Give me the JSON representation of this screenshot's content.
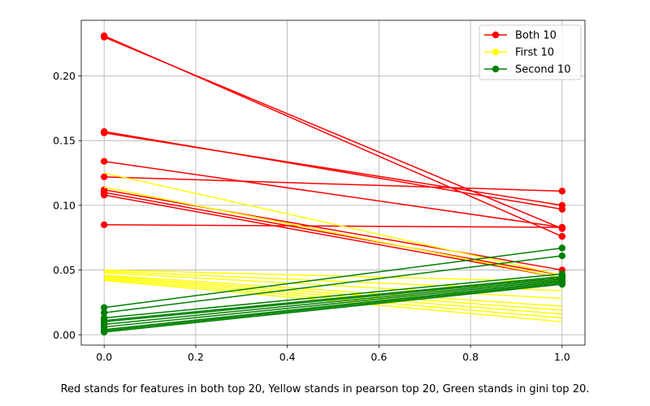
{
  "chart_data": {
    "type": "line",
    "xlim": [
      -0.05,
      1.05
    ],
    "ylim": [
      -0.008,
      0.243
    ],
    "x_ticks": [
      0.0,
      0.2,
      0.4,
      0.6,
      0.8,
      1.0
    ],
    "x_tick_labels": [
      "0.0",
      "0.2",
      "0.4",
      "0.6",
      "0.8",
      "1.0"
    ],
    "y_ticks": [
      0.0,
      0.05,
      0.1,
      0.15,
      0.2
    ],
    "y_tick_labels": [
      "0.00",
      "0.05",
      "0.10",
      "0.15",
      "0.20"
    ],
    "grid": true,
    "legend_position": "top-right",
    "legend": [
      {
        "label": "Both 10",
        "color": "#ff0000"
      },
      {
        "label": "First 10",
        "color": "#ffff00"
      },
      {
        "label": "Second 10",
        "color": "#008000"
      }
    ],
    "groups": [
      {
        "name": "Both 10",
        "color": "#ff0000",
        "markers": true,
        "lines": [
          [
            0.231,
            0.076
          ],
          [
            0.23,
            0.082
          ],
          [
            0.157,
            0.097
          ],
          [
            0.156,
            0.1
          ],
          [
            0.134,
            0.083
          ],
          [
            0.122,
            0.111
          ],
          [
            0.112,
            0.05
          ],
          [
            0.11,
            0.046
          ],
          [
            0.108,
            0.044
          ],
          [
            0.085,
            0.083
          ]
        ]
      },
      {
        "name": "First 10",
        "color": "#ffff00",
        "markers": false,
        "lines": [
          [
            0.125,
            0.046
          ],
          [
            0.114,
            0.044
          ],
          [
            0.05,
            0.041
          ],
          [
            0.049,
            0.034
          ],
          [
            0.048,
            0.028
          ],
          [
            0.046,
            0.022
          ],
          [
            0.045,
            0.019
          ],
          [
            0.044,
            0.016
          ],
          [
            0.043,
            0.013
          ],
          [
            0.042,
            0.01
          ]
        ]
      },
      {
        "name": "Second 10",
        "color": "#008000",
        "markers": true,
        "lines": [
          [
            0.021,
            0.067
          ],
          [
            0.017,
            0.061
          ],
          [
            0.013,
            0.047
          ],
          [
            0.011,
            0.045
          ],
          [
            0.01,
            0.044
          ],
          [
            0.008,
            0.043
          ],
          [
            0.006,
            0.042
          ],
          [
            0.004,
            0.041
          ],
          [
            0.003,
            0.04
          ],
          [
            0.002,
            0.039
          ]
        ]
      }
    ]
  },
  "caption": "Red stands for features in both top 20, Yellow stands in pearson top 20, Green stands in gini top 20."
}
